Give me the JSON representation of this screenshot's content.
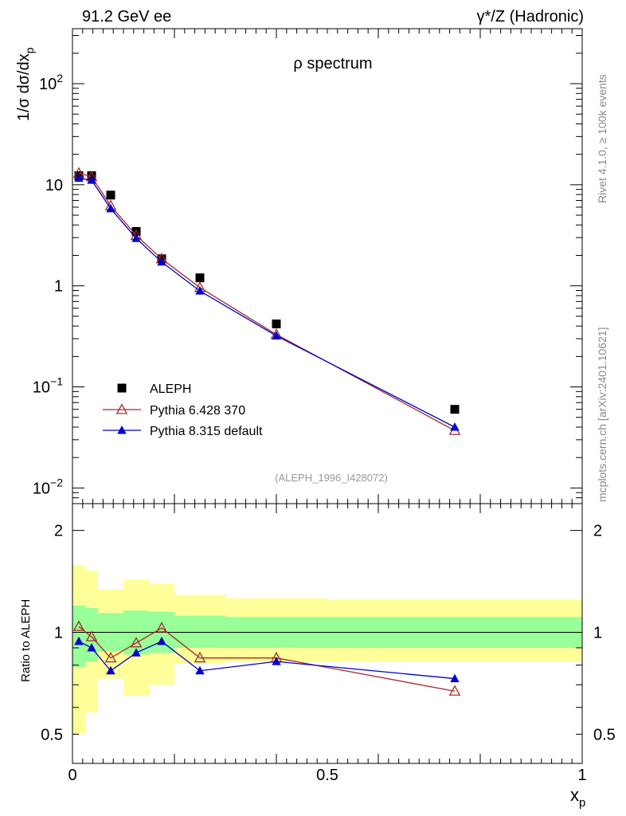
{
  "header": {
    "left": "91.2 GeV ee",
    "right": "γ*/Z (Hadronic)"
  },
  "side_labels": {
    "rivet": "Rivet 4.1.0, ≥ 100k events",
    "mcplots": "mcplots.cern.ch [arXiv:2401.10621]"
  },
  "chart_data": [
    {
      "type": "line",
      "title": "ρ spectrum",
      "ylabel": "1/σ  dσ/dx_p",
      "xlabel": "x_p",
      "yscale": "log",
      "xlim": [
        0,
        1
      ],
      "ylim": [
        0.007,
        350
      ],
      "y_tick_labels": [
        {
          "value": 0.01,
          "base": "10",
          "exp": "−2"
        },
        {
          "value": 0.1,
          "base": "10",
          "exp": "−1"
        },
        {
          "value": 1,
          "base": "1",
          "exp": ""
        },
        {
          "value": 10,
          "base": "10",
          "exp": ""
        },
        {
          "value": 100,
          "base": "10",
          "exp": "2"
        }
      ],
      "x_tick_labels": [
        "0",
        "0.5",
        "1"
      ],
      "x_tick_values": [
        0,
        0.5,
        1
      ],
      "annotation": "(ALEPH_1996_I428072)",
      "legend_position": "bottom-left",
      "x": [
        0.0125,
        0.0375,
        0.075,
        0.125,
        0.175,
        0.25,
        0.4,
        0.75
      ],
      "series": [
        {
          "name": "ALEPH",
          "style": "data",
          "color": "#000000",
          "values": [
            12.3,
            12.3,
            7.9,
            3.45,
            1.85,
            1.2,
            0.42,
            0.06
          ]
        },
        {
          "name": "Pythia 6.428 370",
          "style": "open-triangle",
          "color": "#a52a2a",
          "values": [
            13.0,
            12.0,
            6.2,
            3.15,
            1.85,
            0.96,
            0.33,
            0.037
          ]
        },
        {
          "name": "Pythia 8.315 default",
          "style": "filled-triangle",
          "color": "#0000cc",
          "values": [
            11.6,
            11.1,
            5.8,
            2.95,
            1.72,
            0.89,
            0.32,
            0.04
          ]
        }
      ]
    },
    {
      "type": "line",
      "ylabel": "Ratio to ALEPH",
      "yscale": "log",
      "ylim": [
        0.41,
        2.4
      ],
      "y_tick_labels": [
        "0.5",
        "1",
        "2"
      ],
      "y_tick_values": [
        0.5,
        1,
        2
      ],
      "x_bin_edges": [
        0,
        0.025,
        0.05,
        0.1,
        0.15,
        0.2,
        0.3,
        0.5,
        1.0
      ],
      "band_outer": {
        "color": "#ffff99",
        "low": [
          0.5,
          0.58,
          0.73,
          0.65,
          0.7,
          0.81,
          0.82,
          0.82
        ],
        "high": [
          1.58,
          1.52,
          1.34,
          1.43,
          1.39,
          1.29,
          1.26,
          1.25
        ]
      },
      "band_inner": {
        "color": "#99ff99",
        "low": [
          0.79,
          0.82,
          0.88,
          0.86,
          0.87,
          0.9,
          0.9,
          0.9
        ],
        "high": [
          1.2,
          1.18,
          1.14,
          1.16,
          1.15,
          1.12,
          1.11,
          1.11
        ]
      },
      "x": [
        0.0125,
        0.0375,
        0.075,
        0.125,
        0.175,
        0.25,
        0.4,
        0.75
      ],
      "series": [
        {
          "name": "Pythia 6.428 370",
          "style": "open-triangle",
          "color": "#a52a2a",
          "values": [
            1.04,
            0.97,
            0.84,
            0.93,
            1.03,
            0.84,
            0.84,
            0.67
          ]
        },
        {
          "name": "Pythia 8.315 default",
          "style": "filled-triangle",
          "color": "#0000cc",
          "values": [
            0.94,
            0.9,
            0.77,
            0.87,
            0.94,
            0.77,
            0.82,
            0.73
          ]
        }
      ]
    }
  ]
}
